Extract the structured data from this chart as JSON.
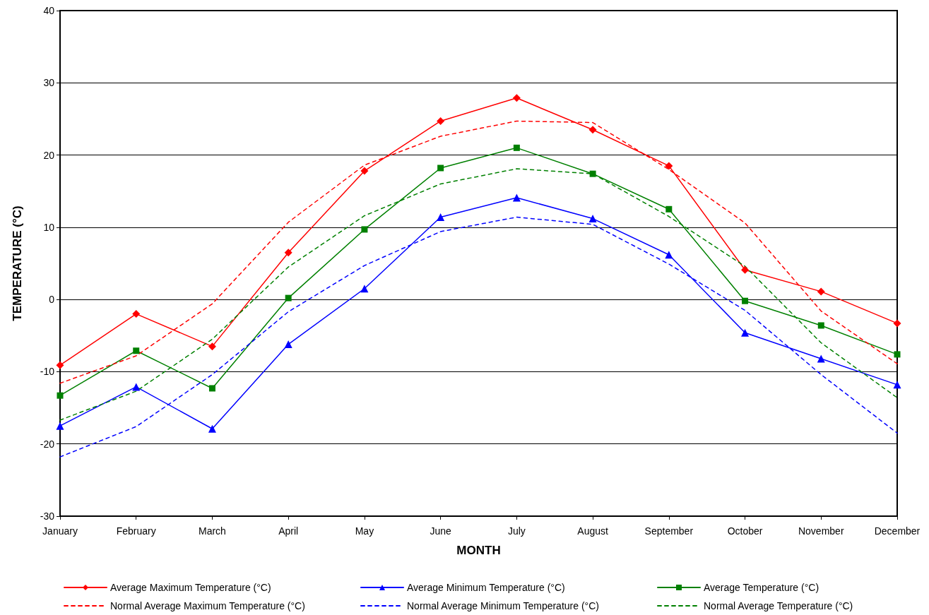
{
  "chart_data": {
    "type": "line",
    "xlabel": "MONTH",
    "ylabel": "TEMPERATURE (°C)",
    "categories": [
      "January",
      "February",
      "March",
      "April",
      "May",
      "June",
      "July",
      "August",
      "September",
      "October",
      "November",
      "December"
    ],
    "ylim": [
      -30,
      40
    ],
    "yticks": [
      -30,
      -20,
      -10,
      0,
      10,
      20,
      30,
      40
    ],
    "grid": "y",
    "legend": "bottom",
    "series": [
      {
        "name": "Average Maximum Temperature (°C)",
        "color": "#ff0000",
        "marker": "diamond",
        "line_style": "solid",
        "values": [
          -9.1,
          -2,
          -6.5,
          6.5,
          17.8,
          24.7,
          27.9,
          23.5,
          18.5,
          4.1,
          1.1,
          -3.3
        ]
      },
      {
        "name": "Average Minimum Temperature (°C)",
        "color": "#0000ff",
        "marker": "triangle",
        "line_style": "solid",
        "values": [
          -17.5,
          -12.1,
          -17.9,
          -6.2,
          1.5,
          11.4,
          14.1,
          11.2,
          6.2,
          -4.6,
          -8.2,
          -11.8
        ]
      },
      {
        "name": "Average Temperature (°C)",
        "color": "#008000",
        "marker": "square",
        "line_style": "solid",
        "values": [
          -13.3,
          -7.1,
          -12.3,
          0.2,
          9.7,
          18.2,
          21,
          17.4,
          12.5,
          -0.2,
          -3.6,
          -7.6
        ]
      },
      {
        "name": "Normal Average Maximum Temperature (°C)",
        "color": "#ff0000",
        "marker": "none",
        "line_style": "dashed",
        "values": [
          -11.6,
          -7.8,
          -0.6,
          10.7,
          18.6,
          22.6,
          24.7,
          24.5,
          18,
          10.6,
          -1.6,
          -8.9
        ]
      },
      {
        "name": "Normal Average Minimum Temperature (°C)",
        "color": "#0000ff",
        "marker": "none",
        "line_style": "dashed",
        "values": [
          -21.8,
          -17.6,
          -10.4,
          -1.7,
          4.7,
          9.4,
          11.4,
          10.4,
          4.9,
          -1.5,
          -10.4,
          -18.5
        ]
      },
      {
        "name": "Normal Average Temperature (°C)",
        "color": "#008000",
        "marker": "none",
        "line_style": "dashed",
        "values": [
          -16.7,
          -12.7,
          -5.5,
          4.5,
          11.6,
          16,
          18.1,
          17.4,
          11.5,
          4.6,
          -6,
          -13.6
        ]
      }
    ]
  }
}
